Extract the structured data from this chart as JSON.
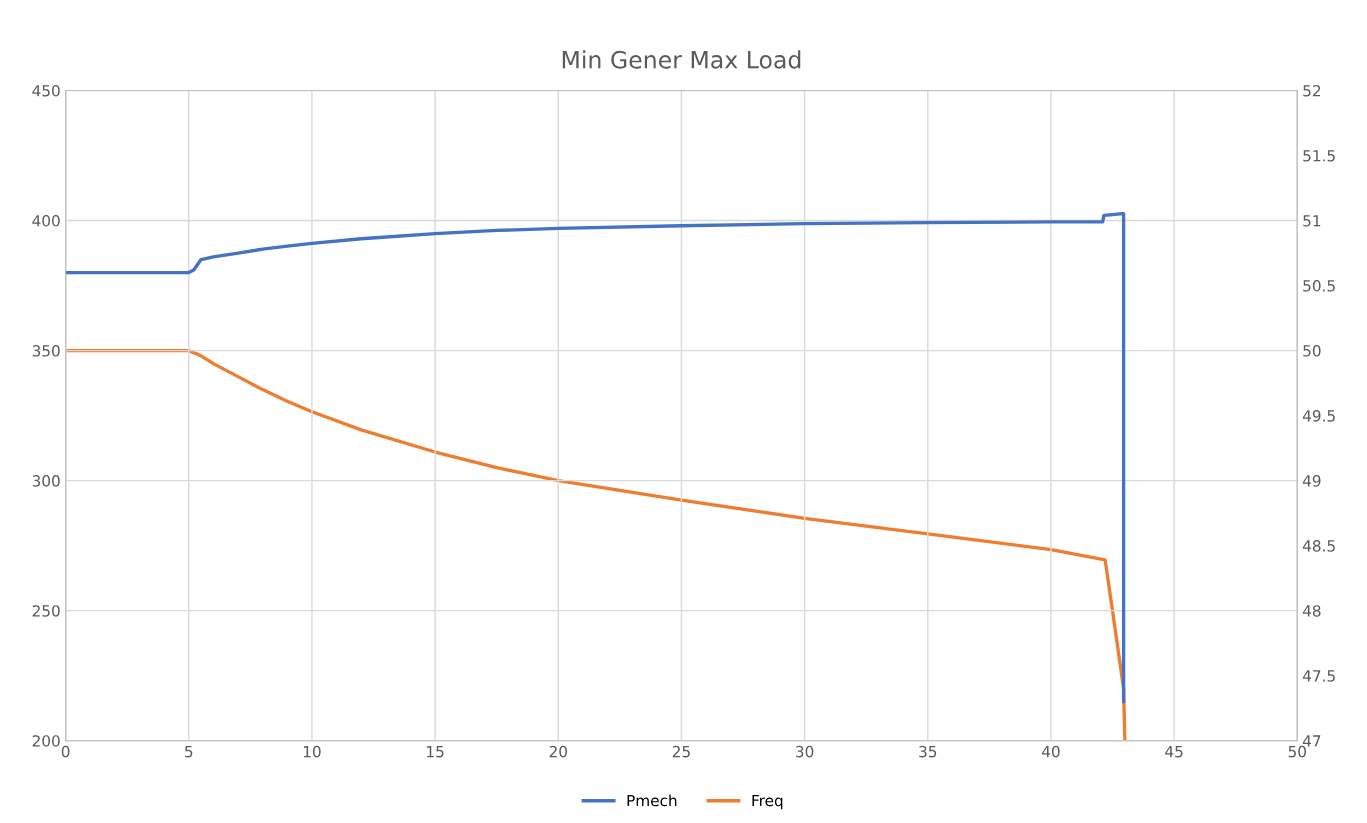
{
  "chart_data": {
    "type": "line",
    "title": "Min Gener Max Load",
    "xlim": [
      0,
      50
    ],
    "xticks": [
      0,
      5,
      10,
      15,
      20,
      25,
      30,
      35,
      40,
      45,
      50
    ],
    "ylim": [
      200,
      450
    ],
    "yticks": [
      200,
      250,
      300,
      350,
      400,
      450
    ],
    "y2lim": [
      47,
      52
    ],
    "y2ticks": [
      47,
      {
        "value": 47.5,
        "label": "47.5"
      },
      48,
      {
        "value": 48.5,
        "label": "48.5"
      },
      49,
      {
        "value": 49.5,
        "label": "49.5"
      },
      50,
      {
        "value": 50.5,
        "label": "50.5"
      },
      51,
      {
        "value": 51.5,
        "label": "51.5"
      },
      52
    ],
    "grid": true,
    "legend": "bottom",
    "marker": "none",
    "line_style": "solid",
    "series": [
      {
        "name": "Pmech",
        "color": "#4472c4",
        "x": [
          0,
          5,
          5.2,
          5.5,
          6,
          7,
          8,
          9,
          10,
          12,
          15,
          17.5,
          20,
          25,
          30,
          35,
          40,
          42.1,
          42.15,
          42.5,
          42.9,
          42.95,
          42.95
        ],
        "values": [
          380,
          380,
          381,
          385,
          386,
          387.5,
          389,
          390.2,
          391.2,
          393,
          395,
          396.2,
          397,
          398,
          398.8,
          399.2,
          399.5,
          399.5,
          402,
          402.3,
          402.7,
          402.7,
          215
        ]
      },
      {
        "name": "Freq",
        "color": "#ed7d31",
        "axis": "y2",
        "x": [
          0,
          5,
          5.5,
          6,
          7,
          8,
          9,
          10,
          12,
          15,
          17.5,
          20,
          25,
          30,
          35,
          40,
          42.2,
          42.5,
          42.8,
          42.95,
          43
        ],
        "values": [
          50,
          50,
          49.96,
          49.9,
          49.8,
          49.7,
          49.61,
          49.53,
          49.39,
          49.22,
          49.1,
          49.0,
          48.85,
          48.71,
          48.59,
          48.47,
          48.39,
          48.0,
          47.6,
          47.4,
          47.0
        ]
      }
    ]
  }
}
